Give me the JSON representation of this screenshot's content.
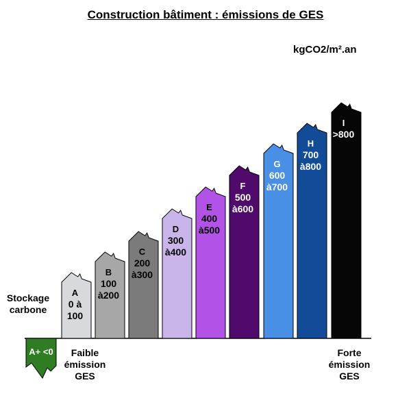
{
  "title": "Construction bâtiment : émissions de GES",
  "unit": "kgCO2/m².an",
  "labels": {
    "stockage": [
      "Stockage",
      "carbone"
    ],
    "faible": [
      "Faible",
      "émission",
      "GES"
    ],
    "forte": [
      "Forte",
      "émission",
      "GES"
    ]
  },
  "classes": [
    {
      "letter": "A+",
      "range": [
        "<0"
      ],
      "color": "#2e7d22",
      "text_color": "#ffffff"
    },
    {
      "letter": "A",
      "range": [
        "0 à",
        "100"
      ],
      "color": "#d8d9dd",
      "text_color": "#000000"
    },
    {
      "letter": "B",
      "range": [
        "100",
        "à200"
      ],
      "color": "#a7a7a7",
      "text_color": "#000000"
    },
    {
      "letter": "C",
      "range": [
        "200",
        "à300"
      ],
      "color": "#7b7b7b",
      "text_color": "#000000"
    },
    {
      "letter": "D",
      "range": [
        "300",
        "à400"
      ],
      "color": "#c9b5ea",
      "text_color": "#000000"
    },
    {
      "letter": "E",
      "range": [
        "400",
        "à500"
      ],
      "color": "#b252e6",
      "text_color": "#000000"
    },
    {
      "letter": "F",
      "range": [
        "500",
        "à600"
      ],
      "color": "#4f0a6b",
      "text_color": "#ffffff"
    },
    {
      "letter": "G",
      "range": [
        "600",
        "à700"
      ],
      "color": "#4a8fe6",
      "text_color": "#ffffff"
    },
    {
      "letter": "H",
      "range": [
        "700",
        "à800"
      ],
      "color": "#124c99",
      "text_color": "#ffffff"
    },
    {
      "letter": "I",
      "range": [
        ">800"
      ],
      "color": "#050505",
      "text_color": "#ffffff"
    }
  ]
}
